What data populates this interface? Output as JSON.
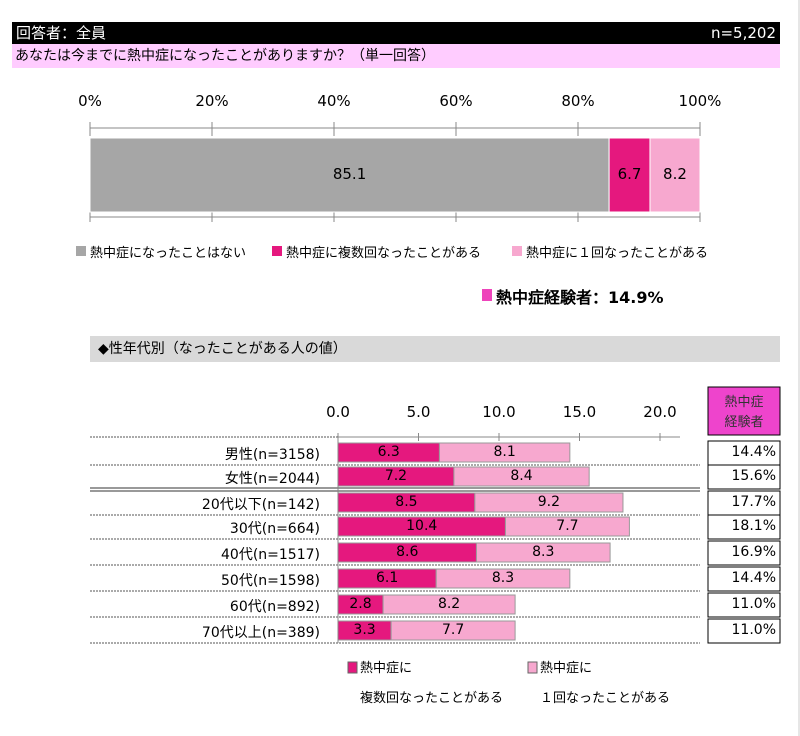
{
  "header": {
    "respondents": "回答者：全員",
    "n": "n=5,202"
  },
  "question": "あなたは今までに熱中症になったことがありますか？（単一回答）",
  "colors": {
    "never": "#a6a6a6",
    "multiple": "#e5187e",
    "once": "#f7a8cf",
    "experienced": "#ee44bb",
    "header_bg": "#000000",
    "question_bg": "#ffccff"
  },
  "chart_data": [
    {
      "type": "bar",
      "orientation": "horizontal",
      "stacked": true,
      "ticks": [
        "0%",
        "20%",
        "40%",
        "60%",
        "80%",
        "100%"
      ],
      "xlim": [
        0,
        100
      ],
      "series": [
        {
          "name": "熱中症になったことはない",
          "values": [
            85.1
          ],
          "labels": [
            "85.1"
          ]
        },
        {
          "name": "熱中症に複数回なったことがある",
          "values": [
            6.7
          ],
          "labels": [
            "6.7"
          ]
        },
        {
          "name": "熱中症に１回なったことがある",
          "values": [
            8.2
          ],
          "labels": [
            "8.2"
          ]
        }
      ],
      "legend": "bottom",
      "summary": "熱中症経験者：14.9%"
    },
    {
      "type": "bar",
      "orientation": "horizontal",
      "stacked": true,
      "title": "◆性年代別（なったことがある人の値）",
      "ticks": [
        "0.0",
        "5.0",
        "10.0",
        "15.0",
        "20.0"
      ],
      "xlim": [
        0,
        20
      ],
      "categories": [
        "男性(n=3158)",
        "女性(n=2044)",
        "20代以下(n=142)",
        "30代(n=664)",
        "40代(n=1517)",
        "50代(n=1598)",
        "60代(n=892)",
        "70代以上(n=389)"
      ],
      "series": [
        {
          "name": "熱中症に複数回なったことがある",
          "values": [
            6.3,
            7.2,
            8.5,
            10.4,
            8.6,
            6.1,
            2.8,
            3.3
          ],
          "labels": [
            "6.3",
            "7.2",
            "8.5",
            "10.4",
            "8.6",
            "6.1",
            "2.8",
            "3.3"
          ]
        },
        {
          "name": "熱中症に１回なったことがある",
          "values": [
            8.1,
            8.4,
            9.2,
            7.7,
            8.3,
            8.3,
            8.2,
            7.7
          ],
          "labels": [
            "8.1",
            "8.4",
            "9.2",
            "7.7",
            "8.3",
            "8.3",
            "8.2",
            "7.7"
          ]
        }
      ],
      "total_header": [
        "熱中症",
        "経験者"
      ],
      "totals": [
        "14.4%",
        "15.6%",
        "17.7%",
        "18.1%",
        "16.9%",
        "14.4%",
        "11.0%",
        "11.0%"
      ],
      "legend_lines": [
        [
          "熱中症に",
          "複数回なったことがある"
        ],
        [
          "熱中症に",
          "１回なったことがある"
        ]
      ],
      "legend": "bottom"
    }
  ]
}
